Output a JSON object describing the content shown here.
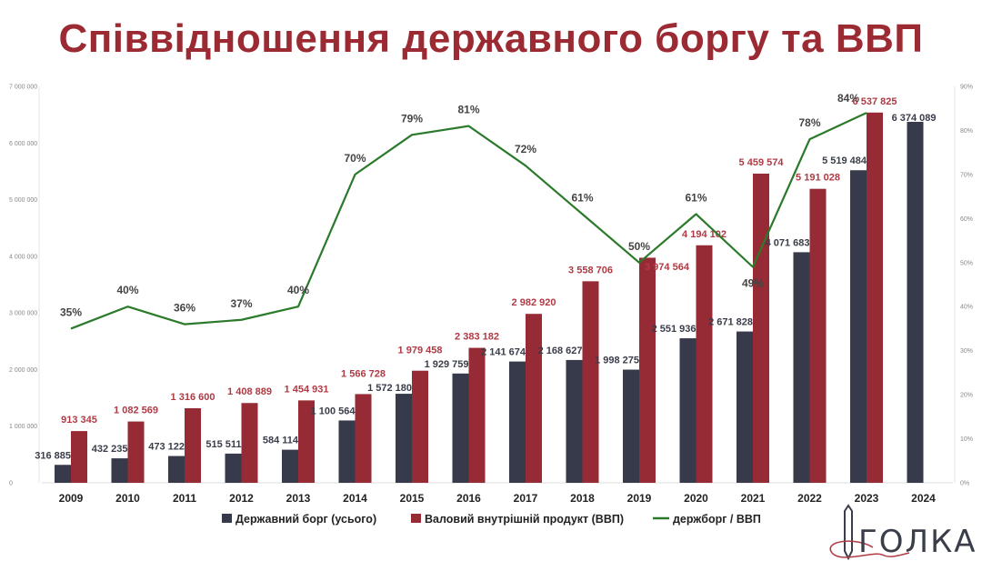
{
  "title": "Співвідношення державного боргу та ВВП",
  "logo_text": "ГОЛКА",
  "colors": {
    "debt": "#363a4a",
    "gdp": "#962b35",
    "ratio": "#2b7a2b",
    "gdp_label": "#b03a44",
    "title": "#9b2a33"
  },
  "chart_data": {
    "type": "bar+line",
    "title": "Співвідношення державного боргу та ВВП",
    "categories": [
      "2009",
      "2010",
      "2011",
      "2012",
      "2013",
      "2014",
      "2015",
      "2016",
      "2017",
      "2018",
      "2019",
      "2020",
      "2021",
      "2022",
      "2023",
      "2024"
    ],
    "series": [
      {
        "name": "Державний борг (усього)",
        "type": "bar",
        "axis": "left",
        "values": [
          316885,
          432235,
          473122,
          515511,
          584114,
          1100564,
          1572180,
          1929759,
          2141674,
          2168627,
          1998275,
          2551936,
          2671828,
          4071683,
          5519484,
          6374089
        ],
        "labels": [
          "316 885",
          "432 235",
          "473 122",
          "515 511",
          "584 114",
          "1 100 564",
          "1 572 180",
          "1 929 759",
          "2 141 674",
          "2 168 627",
          "1 998 275",
          "2 551 936",
          "2 671 828",
          "4 071 683",
          "5 519 484",
          "6 374 089"
        ]
      },
      {
        "name": "Валовий внутрішній продукт (ВВП)",
        "type": "bar",
        "axis": "left",
        "values": [
          913345,
          1082569,
          1316600,
          1408889,
          1454931,
          1566728,
          1979458,
          2383182,
          2982920,
          3558706,
          3974564,
          4194102,
          5459574,
          5191028,
          6537825,
          null
        ],
        "labels": [
          "913 345",
          "1 082 569",
          "1 316 600",
          "1 408 889",
          "1 454 931",
          "1 566 728",
          "1 979 458",
          "2 383 182",
          "2 982 920",
          "3 558 706",
          "3 974 564",
          "4 194 102",
          "5 459 574",
          "5 191 028",
          "6 537 825",
          ""
        ]
      },
      {
        "name": "держборг / ВВП",
        "type": "line",
        "axis": "right",
        "values": [
          35,
          40,
          36,
          37,
          40,
          70,
          79,
          81,
          72,
          61,
          50,
          61,
          49,
          78,
          84,
          null
        ],
        "labels": [
          "35%",
          "40%",
          "36%",
          "37%",
          "40%",
          "70%",
          "79%",
          "81%",
          "72%",
          "61%",
          "50%",
          "61%",
          "49%",
          "78%",
          "84%",
          ""
        ]
      }
    ],
    "y_left": {
      "range": [
        0,
        7000000
      ],
      "ticks": [
        "0",
        "1 000 000",
        "2 000 000",
        "3 000 000",
        "4 000 000",
        "5 000 000",
        "6 000 000",
        "7 000 000"
      ]
    },
    "y_right": {
      "range": [
        0,
        90
      ],
      "ticks": [
        "0%",
        "10%",
        "20%",
        "30%",
        "40%",
        "50%",
        "60%",
        "70%",
        "80%",
        "90%"
      ]
    },
    "legend": {
      "position": "bottom",
      "items": [
        "Державний борг (усього)",
        "Валовий внутрішній продукт (ВВП)",
        "держборг / ВВП"
      ]
    },
    "grid": false
  }
}
